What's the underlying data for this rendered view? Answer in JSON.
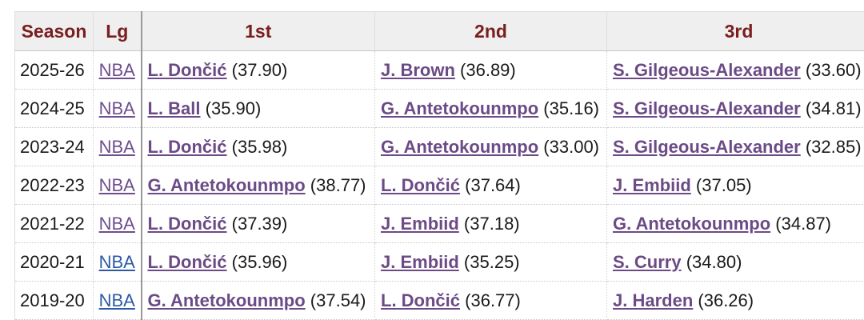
{
  "table": {
    "headers": {
      "season": "Season",
      "lg": "Lg",
      "first": "1st",
      "second": "2nd",
      "third": "3rd"
    },
    "rows": [
      {
        "season": "2025-26",
        "lg": "NBA",
        "first": {
          "name": "L. Dončić",
          "score": "(37.90)"
        },
        "second": {
          "name": "J. Brown",
          "score": "(36.89)"
        },
        "third": {
          "name": "S. Gilgeous-Alexander",
          "score": "(33.60)"
        }
      },
      {
        "season": "2024-25",
        "lg": "NBA",
        "first": {
          "name": "L. Ball",
          "score": "(35.90)"
        },
        "second": {
          "name": "G. Antetokounmpo",
          "score": "(35.16)"
        },
        "third": {
          "name": "S. Gilgeous-Alexander",
          "score": "(34.81)"
        }
      },
      {
        "season": "2023-24",
        "lg": "NBA",
        "first": {
          "name": "L. Dončić",
          "score": "(35.98)"
        },
        "second": {
          "name": "G. Antetokounmpo",
          "score": "(33.00)"
        },
        "third": {
          "name": "S. Gilgeous-Alexander",
          "score": "(32.85)"
        }
      },
      {
        "season": "2022-23",
        "lg": "NBA",
        "first": {
          "name": "G. Antetokounmpo",
          "score": "(38.77)"
        },
        "second": {
          "name": "L. Dončić",
          "score": "(37.64)"
        },
        "third": {
          "name": "J. Embiid",
          "score": "(37.05)"
        }
      },
      {
        "season": "2021-22",
        "lg": "NBA",
        "first": {
          "name": "L. Dončić",
          "score": "(37.39)"
        },
        "second": {
          "name": "J. Embiid",
          "score": "(37.18)"
        },
        "third": {
          "name": "G. Antetokounmpo",
          "score": "(34.87)"
        }
      },
      {
        "season": "2020-21",
        "lg": "NBA",
        "first": {
          "name": "L. Dončić",
          "score": "(35.96)"
        },
        "second": {
          "name": "J. Embiid",
          "score": "(35.25)"
        },
        "third": {
          "name": "S. Curry",
          "score": "(34.80)"
        }
      },
      {
        "season": "2019-20",
        "lg": "NBA",
        "first": {
          "name": "G. Antetokounmpo",
          "score": "(37.54)"
        },
        "second": {
          "name": "L. Dončić",
          "score": "(36.77)"
        },
        "third": {
          "name": "J. Harden",
          "score": "(36.26)"
        }
      }
    ]
  },
  "colors": {
    "header_text": "#7a1d1d",
    "header_bg": "#efefef",
    "player_link": "#6b4a86",
    "league_link_visited": "#6e4e8e",
    "league_link_unvisited": "#2d5aa8"
  }
}
